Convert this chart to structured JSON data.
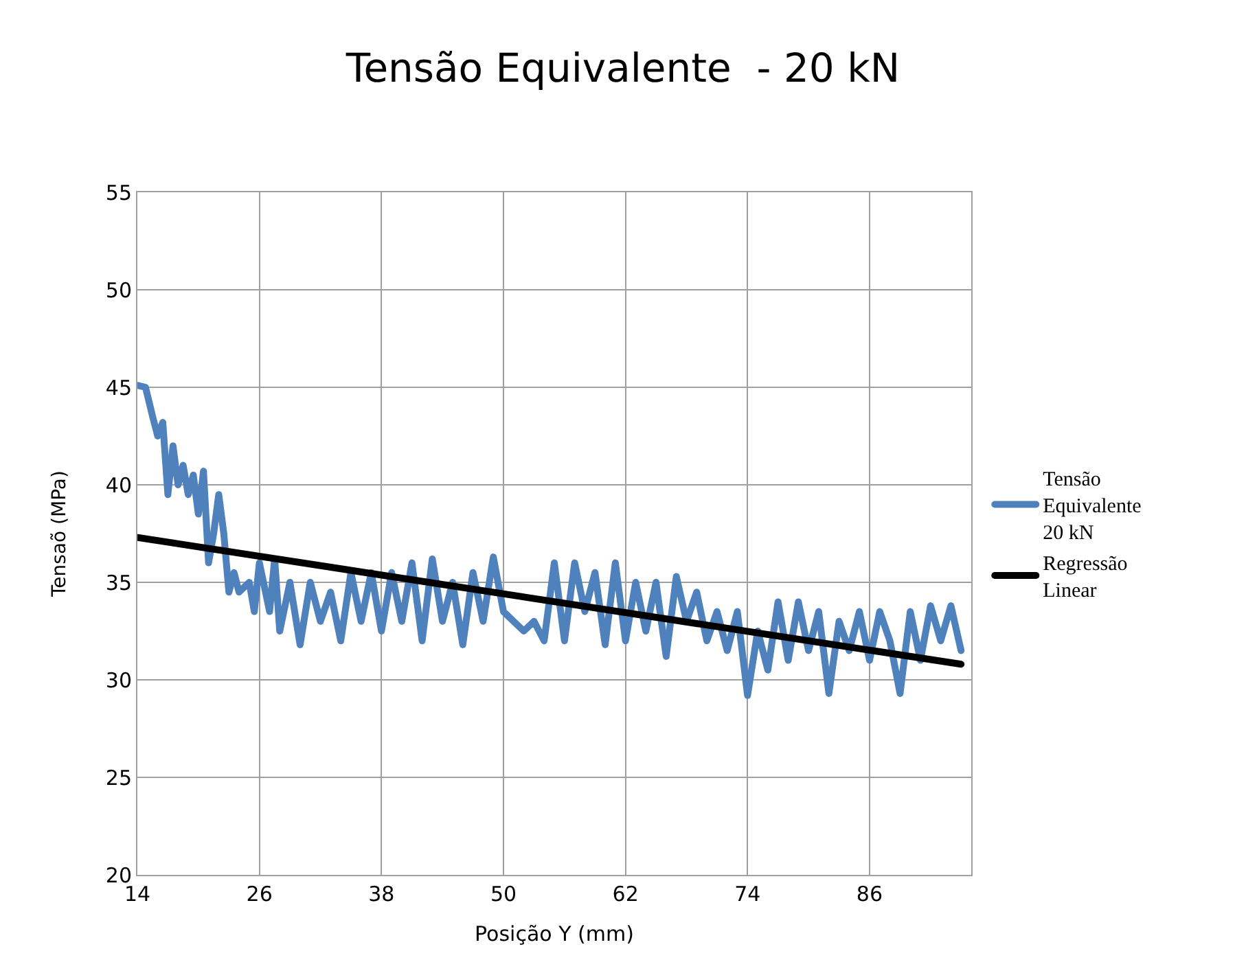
{
  "chart_data": {
    "type": "line",
    "title": "Tensão Equivalente  - 20 kN",
    "xlabel": "Posição Y (mm)",
    "ylabel": "Tensaõ (MPa)",
    "xlim": [
      14,
      96
    ],
    "xticks": [
      14,
      26,
      38,
      50,
      62,
      74,
      86
    ],
    "ylim": [
      20,
      55
    ],
    "yticks": [
      20,
      25,
      30,
      35,
      40,
      45,
      50,
      55
    ],
    "grid": true,
    "legend": "right",
    "marker": "none",
    "line_style": "solid",
    "series": [
      {
        "name": "Tensão Equivalente 20 kN",
        "color": "#4f81bd",
        "x": [
          14,
          14.8,
          15.5,
          16,
          16.5,
          17,
          17.5,
          18,
          18.5,
          19,
          19.5,
          20,
          20.5,
          21,
          21.5,
          22,
          22.5,
          23,
          23.5,
          24,
          25,
          25.5,
          26,
          27,
          27.5,
          28,
          29,
          30,
          31,
          32,
          33,
          34,
          35,
          36,
          37,
          38,
          39,
          40,
          41,
          42,
          43,
          44,
          45,
          46,
          47,
          48,
          49,
          50,
          51,
          52,
          53,
          54,
          55,
          56,
          57,
          58,
          59,
          60,
          61,
          62,
          63,
          64,
          65,
          66,
          67,
          68,
          69,
          70,
          71,
          72,
          73,
          74,
          75,
          76,
          77,
          78,
          79,
          80,
          81,
          82,
          83,
          84,
          85,
          86,
          87,
          88,
          89,
          90,
          91,
          92,
          93,
          94,
          95
        ],
        "values": [
          45.1,
          45,
          43.5,
          42.5,
          43.2,
          39.5,
          42,
          40,
          41,
          39.5,
          40.5,
          38.5,
          40.7,
          36,
          37.5,
          39.5,
          37.5,
          34.5,
          35.5,
          34.5,
          35,
          33.5,
          36,
          33.5,
          36.2,
          32.5,
          35,
          31.8,
          35,
          33,
          34.5,
          32,
          35.5,
          33,
          35.5,
          32.5,
          35.5,
          33,
          36,
          32,
          36.2,
          33,
          35,
          31.8,
          35.5,
          33,
          36.3,
          33.5,
          33,
          32.5,
          33,
          32,
          36,
          32,
          36,
          33.5,
          35.5,
          31.8,
          36,
          32,
          35,
          32.5,
          35,
          31.2,
          35.3,
          33,
          34.5,
          32,
          33.5,
          31.5,
          33.5,
          29.2,
          32.5,
          30.5,
          34,
          31,
          34,
          31.5,
          33.5,
          29.3,
          33,
          31.5,
          33.5,
          31,
          33.5,
          32,
          29.3,
          33.5,
          31,
          33.8,
          32,
          33.8,
          31.5
        ]
      },
      {
        "name": "Regressão Linear",
        "color": "#000000",
        "x": [
          14,
          95
        ],
        "values": [
          37.3,
          30.8
        ]
      }
    ]
  }
}
